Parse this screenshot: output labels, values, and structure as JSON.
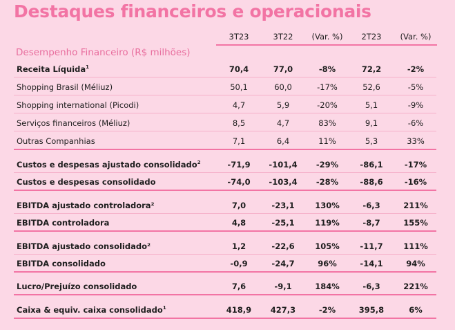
{
  "title": "Destaques financeiros e operacionais",
  "section_label": "Desempenho Financeiro (R$ milhões)",
  "columns": [
    "3T23",
    "3T22",
    "(Var. %)",
    "2T23",
    "(Var. %)"
  ],
  "rows": [
    {
      "label": "Receita Líquida",
      "sup": "1",
      "values": [
        "70,4",
        "77,0",
        "-8%",
        "72,2",
        "-2%"
      ]
    },
    {
      "label": "Shopping Brasil (Méliuz)",
      "sup": "",
      "values": [
        "50,1",
        "60,0",
        "-17%",
        "52,6",
        "-5%"
      ]
    },
    {
      "label": "Shopping international (Picodi)",
      "sup": "",
      "values": [
        "4,7",
        "5,9",
        "-20%",
        "5,1",
        "-9%"
      ]
    },
    {
      "label": "Serviços financeiros (Méliuz)",
      "sup": "",
      "values": [
        "8,5",
        "4,7",
        "83%",
        "9,1",
        "-6%"
      ]
    },
    {
      "label": "Outras Companhias",
      "sup": "",
      "values": [
        "7,1",
        "6,4",
        "11%",
        "5,3",
        "33%"
      ]
    },
    {
      "label": "Custos e despesas ajustado consolidado",
      "sup": "2",
      "values": [
        "-71,9",
        "-101,4",
        "-29%",
        "-86,1",
        "-17%"
      ]
    },
    {
      "label": "Custos e despesas consolidado",
      "sup": "",
      "values": [
        "-74,0",
        "-103,4",
        "-28%",
        "-88,6",
        "-16%"
      ]
    },
    {
      "label": "EBITDA ajustado controladora²",
      "sup": "",
      "values": [
        "7,0",
        "-23,1",
        "130%",
        "-6,3",
        "211%"
      ]
    },
    {
      "label": "EBITDA controladora",
      "sup": "",
      "values": [
        "4,8",
        "-25,1",
        "119%",
        "-8,7",
        "155%"
      ]
    },
    {
      "label": "EBITDA ajustado consolidado²",
      "sup": "",
      "values": [
        "1,2",
        "-22,6",
        "105%",
        "-11,7",
        "111%"
      ]
    },
    {
      "label": "EBITDA consolidado",
      "sup": "",
      "values": [
        "-0,9",
        "-24,7",
        "96%",
        "-14,1",
        "94%"
      ]
    },
    {
      "label": "Lucro/Prejuízo consolidado",
      "sup": "",
      "values": [
        "7,6",
        "-9,1",
        "184%",
        "-6,3",
        "221%"
      ]
    },
    {
      "label": "Caixa & equiv. caixa consolidado",
      "sup": "1",
      "values": [
        "418,9",
        "427,3",
        "-2%",
        "395,8",
        "6%"
      ]
    }
  ]
}
